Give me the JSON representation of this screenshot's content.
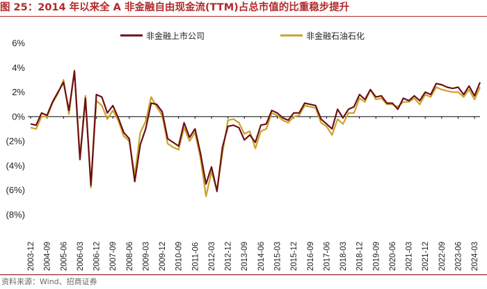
{
  "header": {
    "title": "图 25：2014 年以来全 A 非金融自由现金流(TTM)占总市值的比重稳步提升"
  },
  "source": "资料来源：Wind、招商证券",
  "colors": {
    "title": "#b22a2a",
    "series_1": "#6b0f14",
    "series_2": "#c9a227",
    "zero_line": "#000000"
  },
  "chart_data": {
    "type": "line",
    "title": "",
    "xlabel": "",
    "ylabel": "",
    "ylim": [
      -8,
      6
    ],
    "yticks": [
      "6%",
      "4%",
      "2%",
      "0%",
      "(2%)",
      "(4%)",
      "(6%)",
      "(8%)"
    ],
    "ytick_values": [
      6,
      4,
      2,
      0,
      -2,
      -4,
      -6,
      -8
    ],
    "legend_position": "top",
    "grid": false,
    "x": [
      "2003-12",
      "2004-03",
      "2004-06",
      "2004-09",
      "2004-12",
      "2005-03",
      "2005-06",
      "2005-09",
      "2005-12",
      "2006-03",
      "2006-06",
      "2006-09",
      "2006-12",
      "2007-03",
      "2007-06",
      "2007-09",
      "2007-12",
      "2008-03",
      "2008-06",
      "2008-09",
      "2008-12",
      "2009-03",
      "2009-06",
      "2009-09",
      "2009-12",
      "2010-03",
      "2010-06",
      "2010-09",
      "2010-12",
      "2011-03",
      "2011-06",
      "2011-09",
      "2011-12",
      "2012-03",
      "2012-06",
      "2012-09",
      "2012-12",
      "2013-03",
      "2013-06",
      "2013-09",
      "2013-12",
      "2014-03",
      "2014-06",
      "2014-09",
      "2014-12",
      "2015-03",
      "2015-06",
      "2015-09",
      "2015-12",
      "2016-03",
      "2016-06",
      "2016-09",
      "2016-12",
      "2017-03",
      "2017-06",
      "2017-09",
      "2017-12",
      "2018-03",
      "2018-06",
      "2018-09",
      "2018-12",
      "2019-03",
      "2019-06",
      "2019-09",
      "2019-12",
      "2020-03",
      "2020-06",
      "2020-09",
      "2020-12",
      "2021-03",
      "2021-06",
      "2021-09",
      "2021-12",
      "2022-03",
      "2022-06",
      "2022-09",
      "2022-12",
      "2023-03",
      "2023-06",
      "2023-09",
      "2023-12",
      "2024-03",
      "2024-06"
    ],
    "x_tick_labels": [
      "2003-12",
      "2004-09",
      "2005-06",
      "2006-03",
      "2006-12",
      "2007-09",
      "2008-06",
      "2009-03",
      "2009-12",
      "2010-09",
      "2011-06",
      "2012-03",
      "2012-12",
      "2013-09",
      "2014-06",
      "2015-03",
      "2015-12",
      "2016-09",
      "2017-06",
      "2018-03",
      "2018-12",
      "2019-09",
      "2020-06",
      "2021-03",
      "2021-12",
      "2022-09",
      "2023-06",
      "2024-03"
    ],
    "series": [
      {
        "name": "非金融上市公司",
        "values": [
          -0.6,
          -0.7,
          0.3,
          0.1,
          1.2,
          2.0,
          2.8,
          0.5,
          3.7,
          -3.5,
          1.5,
          -5.6,
          1.8,
          1.6,
          0.3,
          0.9,
          -0.1,
          -1.3,
          -1.8,
          -5.3,
          -2.3,
          -1.0,
          1.1,
          1.0,
          0.4,
          -1.8,
          -2.1,
          -2.4,
          -0.5,
          -1.7,
          -1.0,
          -3.0,
          -5.5,
          -4.1,
          -6.1,
          -2.5,
          -0.8,
          -0.7,
          -0.9,
          -1.9,
          -1.5,
          -2.1,
          -0.7,
          -0.6,
          0.5,
          0.3,
          -0.1,
          -0.3,
          0.3,
          0.3,
          1.1,
          1.0,
          0.9,
          -0.2,
          -0.6,
          -1.0,
          0.6,
          -0.1,
          0.6,
          0.8,
          1.8,
          1.4,
          2.2,
          1.6,
          1.7,
          1.1,
          1.1,
          0.6,
          1.5,
          1.3,
          1.7,
          1.3,
          2.0,
          1.8,
          2.7,
          2.6,
          2.4,
          2.3,
          2.4,
          1.8,
          2.5,
          1.7,
          2.8
        ]
      },
      {
        "name": "非金融石油石化",
        "values": [
          -0.9,
          -1.0,
          0.0,
          0.0,
          1.1,
          1.9,
          3.0,
          0.2,
          3.8,
          -3.3,
          1.7,
          -5.8,
          1.3,
          0.9,
          -0.2,
          0.5,
          -0.3,
          -1.6,
          -2.0,
          -4.8,
          -1.3,
          -0.4,
          1.6,
          0.8,
          0.1,
          -2.2,
          -2.5,
          -2.7,
          -0.9,
          -2.0,
          -1.3,
          -3.4,
          -6.5,
          -4.5,
          -6.0,
          -3.0,
          -0.3,
          -0.2,
          -0.5,
          -1.4,
          -1.2,
          -2.6,
          -1.2,
          -1.0,
          0.3,
          0.1,
          -0.3,
          -0.5,
          0.0,
          0.1,
          0.9,
          0.8,
          0.7,
          -0.5,
          -0.8,
          -1.5,
          -0.2,
          -0.6,
          0.3,
          0.3,
          1.5,
          1.2,
          2.2,
          1.4,
          1.5,
          1.0,
          1.0,
          0.8,
          1.2,
          1.2,
          1.5,
          1.0,
          1.8,
          1.6,
          2.4,
          2.2,
          2.1,
          2.0,
          2.0,
          1.6,
          2.2,
          1.4,
          2.4
        ]
      }
    ]
  }
}
